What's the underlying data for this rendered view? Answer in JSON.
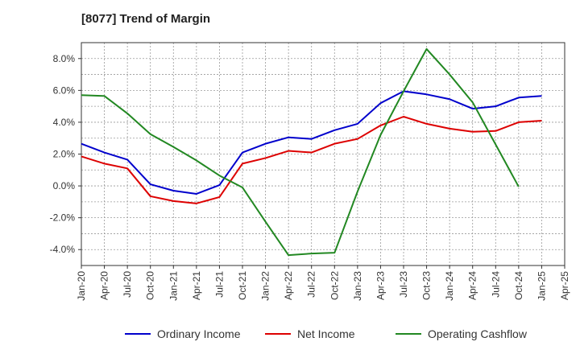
{
  "chart_data": {
    "type": "line",
    "title": "[8077]  Trend of Margin",
    "xlabel": "",
    "ylabel": "",
    "x_ticks": [
      "Jan-20",
      "Apr-20",
      "Jul-20",
      "Oct-20",
      "Jan-21",
      "Apr-21",
      "Jul-21",
      "Oct-21",
      "Jan-22",
      "Apr-22",
      "Jul-22",
      "Oct-22",
      "Jan-23",
      "Apr-23",
      "Jul-23",
      "Oct-23",
      "Jan-24",
      "Apr-24",
      "Jul-24",
      "Oct-24",
      "Jan-25",
      "Apr-25"
    ],
    "y_ticks": [
      -4.0,
      -2.0,
      0.0,
      2.0,
      4.0,
      6.0,
      8.0
    ],
    "y_tick_labels": [
      "-4.0%",
      "-2.0%",
      "0.0%",
      "2.0%",
      "4.0%",
      "6.0%",
      "8.0%"
    ],
    "ylim": [
      -5.0,
      9.0
    ],
    "grid": true,
    "legend_position": "bottom",
    "series": [
      {
        "name": "Ordinary Income",
        "color": "#0000cc",
        "values": [
          2.65,
          2.1,
          1.65,
          0.1,
          -0.3,
          -0.5,
          0.05,
          2.1,
          2.65,
          3.05,
          2.95,
          3.5,
          3.9,
          5.2,
          5.95,
          5.75,
          5.45,
          4.85,
          5.0,
          5.55,
          5.65
        ]
      },
      {
        "name": "Net Income",
        "color": "#dd0000",
        "values": [
          1.85,
          1.4,
          1.1,
          -0.65,
          -0.95,
          -1.1,
          -0.7,
          1.4,
          1.75,
          2.2,
          2.1,
          2.65,
          2.95,
          3.8,
          4.35,
          3.9,
          3.6,
          3.4,
          3.45,
          4.0,
          4.1
        ]
      },
      {
        "name": "Operating Cashflow",
        "color": "#228822",
        "values": [
          5.7,
          5.65,
          4.55,
          3.25,
          2.45,
          1.6,
          0.65,
          -0.1,
          -2.25,
          -4.35,
          -4.25,
          -4.2,
          -0.35,
          3.2,
          5.95,
          8.6,
          7.0,
          5.25,
          2.6,
          -0.05,
          null
        ]
      }
    ]
  }
}
